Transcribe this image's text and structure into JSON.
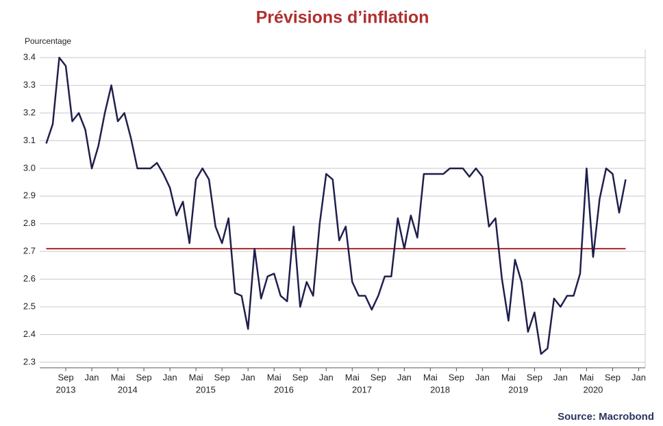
{
  "chart_data": {
    "type": "line",
    "title": "Prévisions d’inflation",
    "y_label": "Pourcentage",
    "source": "Source: Macrobond",
    "x": [
      "2013-06",
      "2013-07",
      "2013-08",
      "2013-09",
      "2013-10",
      "2013-11",
      "2013-12",
      "2014-01",
      "2014-02",
      "2014-03",
      "2014-04",
      "2014-05",
      "2014-06",
      "2014-07",
      "2014-08",
      "2014-09",
      "2014-10",
      "2014-11",
      "2014-12",
      "2015-01",
      "2015-02",
      "2015-03",
      "2015-04",
      "2015-05",
      "2015-06",
      "2015-07",
      "2015-08",
      "2015-09",
      "2015-10",
      "2015-11",
      "2015-12",
      "2016-01",
      "2016-02",
      "2016-03",
      "2016-04",
      "2016-05",
      "2016-06",
      "2016-07",
      "2016-08",
      "2016-09",
      "2016-10",
      "2016-11",
      "2016-12",
      "2017-01",
      "2017-02",
      "2017-03",
      "2017-04",
      "2017-05",
      "2017-06",
      "2017-07",
      "2017-08",
      "2017-09",
      "2017-10",
      "2017-11",
      "2017-12",
      "2018-01",
      "2018-02",
      "2018-03",
      "2018-04",
      "2018-05",
      "2018-06",
      "2018-07",
      "2018-08",
      "2018-09",
      "2018-10",
      "2018-11",
      "2018-12",
      "2019-01",
      "2019-02",
      "2019-03",
      "2019-04",
      "2019-05",
      "2019-06",
      "2019-07",
      "2019-08",
      "2019-09",
      "2019-10",
      "2019-11",
      "2019-12",
      "2020-01",
      "2020-02",
      "2020-03",
      "2020-04",
      "2020-05",
      "2020-06",
      "2020-07",
      "2020-08",
      "2020-09",
      "2020-10",
      "2020-11"
    ],
    "series": [
      {
        "color": "#1f1f4d",
        "values": [
          3.09,
          3.16,
          3.4,
          3.37,
          3.17,
          3.2,
          3.14,
          3.0,
          3.08,
          3.2,
          3.3,
          3.17,
          3.2,
          3.11,
          3.0,
          3.0,
          3.0,
          3.02,
          2.98,
          2.93,
          2.83,
          2.88,
          2.73,
          2.96,
          3.0,
          2.96,
          2.79,
          2.73,
          2.82,
          2.55,
          2.54,
          2.42,
          2.71,
          2.53,
          2.61,
          2.62,
          2.54,
          2.52,
          2.79,
          2.5,
          2.59,
          2.54,
          2.8,
          2.98,
          2.96,
          2.74,
          2.79,
          2.59,
          2.54,
          2.54,
          2.49,
          2.54,
          2.61,
          2.61,
          2.82,
          2.71,
          2.83,
          2.75,
          2.98,
          2.98,
          2.98,
          2.98,
          3.0,
          3.0,
          3.0,
          2.97,
          3.0,
          2.97,
          2.79,
          2.82,
          2.6,
          2.45,
          2.67,
          2.59,
          2.41,
          2.48,
          2.33,
          2.35,
          2.53,
          2.5,
          2.54,
          2.54,
          2.62,
          3.0,
          2.68,
          2.89,
          3.0,
          2.98,
          2.84,
          2.96
        ]
      }
    ],
    "reference_line": {
      "value": 2.71,
      "color": "#b22222"
    },
    "xlim": [
      "2013-05",
      "2021-02"
    ],
    "xticks": [
      {
        "value": "2013-09",
        "label": "Sep"
      },
      {
        "value": "2014-01",
        "label": "Jan"
      },
      {
        "value": "2014-05",
        "label": "Mai"
      },
      {
        "value": "2014-09",
        "label": "Sep"
      },
      {
        "value": "2015-01",
        "label": "Jan"
      },
      {
        "value": "2015-05",
        "label": "Mai"
      },
      {
        "value": "2015-09",
        "label": "Sep"
      },
      {
        "value": "2016-01",
        "label": "Jan"
      },
      {
        "value": "2016-05",
        "label": "Mai"
      },
      {
        "value": "2016-09",
        "label": "Sep"
      },
      {
        "value": "2017-01",
        "label": "Jan"
      },
      {
        "value": "2017-05",
        "label": "Mai"
      },
      {
        "value": "2017-09",
        "label": "Sep"
      },
      {
        "value": "2018-01",
        "label": "Jan"
      },
      {
        "value": "2018-05",
        "label": "Mai"
      },
      {
        "value": "2018-09",
        "label": "Sep"
      },
      {
        "value": "2019-01",
        "label": "Jan"
      },
      {
        "value": "2019-05",
        "label": "Mai"
      },
      {
        "value": "2019-09",
        "label": "Sep"
      },
      {
        "value": "2020-01",
        "label": "Jan"
      },
      {
        "value": "2020-05",
        "label": "Mai"
      },
      {
        "value": "2020-09",
        "label": "Sep"
      },
      {
        "value": "2021-01",
        "label": "Jan"
      }
    ],
    "xgroups": [
      "2013",
      "2014",
      "2015",
      "2016",
      "2017",
      "2018",
      "2019",
      "2020"
    ],
    "ylim": [
      2.28,
      3.43
    ],
    "yticks": [
      2.3,
      2.4,
      2.5,
      2.6,
      2.7,
      2.8,
      2.9,
      {
        "value": 3,
        "label": "3.0"
      },
      3.1,
      3.2,
      3.3,
      3.4
    ],
    "grid": true
  }
}
